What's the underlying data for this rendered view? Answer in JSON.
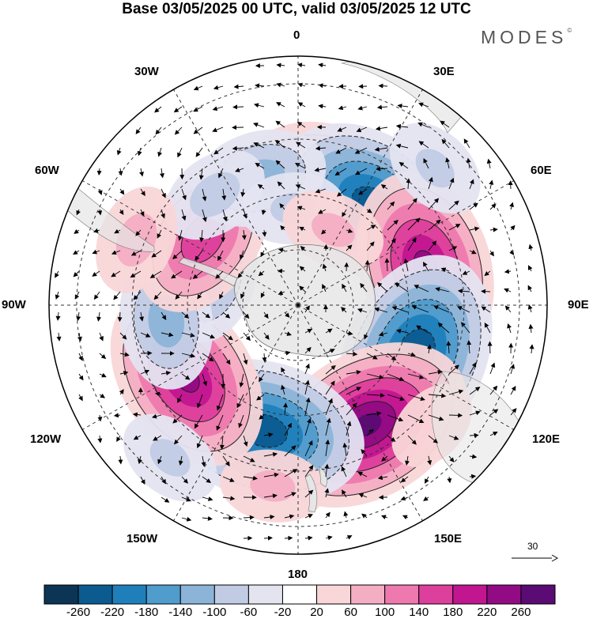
{
  "title": "Base 03/05/2025 00 UTC, valid 03/05/2025 12 UTC",
  "brand": "MODES",
  "brand_mark": "©",
  "longitude_labels": [
    {
      "id": "lon-0",
      "text": "0"
    },
    {
      "id": "lon-30e",
      "text": "30E"
    },
    {
      "id": "lon-60e",
      "text": "60E"
    },
    {
      "id": "lon-90e",
      "text": "90E"
    },
    {
      "id": "lon-120e",
      "text": "120E"
    },
    {
      "id": "lon-150e",
      "text": "150E"
    },
    {
      "id": "lon-180",
      "text": "180"
    },
    {
      "id": "lon-150w",
      "text": "150W"
    },
    {
      "id": "lon-120w",
      "text": "120W"
    },
    {
      "id": "lon-90w",
      "text": "90W"
    },
    {
      "id": "lon-60w",
      "text": "60W"
    },
    {
      "id": "lon-30w",
      "text": "30W"
    }
  ],
  "reference_vector": {
    "value": "30"
  },
  "colorbar": {
    "colors": [
      "#0c3454",
      "#0b5b91",
      "#1f7fbb",
      "#4f9ccd",
      "#8cb4d8",
      "#c1cbe4",
      "#e4e4f1",
      "#ffffff",
      "#f9d6d8",
      "#f4aec4",
      "#ee79ae",
      "#dd3f9c",
      "#c11690",
      "#920b84",
      "#5a0b74"
    ],
    "ticks": [
      "-260",
      "-220",
      "-180",
      "-140",
      "-100",
      "-60",
      "-20",
      "20",
      "60",
      "100",
      "140",
      "180",
      "220",
      "260"
    ]
  },
  "anomaly_centers": [
    {
      "lon": 10,
      "lat": -42,
      "value": 150
    },
    {
      "lon": 37,
      "lat": -45,
      "value": -250
    },
    {
      "lon": 73,
      "lat": -42,
      "value": 230
    },
    {
      "lon": 113,
      "lat": -44,
      "value": -260
    },
    {
      "lon": 150,
      "lat": -40,
      "value": 270
    },
    {
      "lon": -165,
      "lat": -43,
      "value": -250
    },
    {
      "lon": -123,
      "lat": -42,
      "value": 230
    },
    {
      "lon": -73,
      "lat": -57,
      "value": -110
    },
    {
      "lon": -97,
      "lat": -42,
      "value": -120
    },
    {
      "lon": -55,
      "lat": -48,
      "value": 170
    },
    {
      "lon": -17,
      "lat": -42,
      "value": -120
    },
    {
      "lon": -37,
      "lat": -40,
      "value": -70
    },
    {
      "lon": -3,
      "lat": -55,
      "value": -60
    },
    {
      "lon": 25,
      "lat": -60,
      "value": 60
    },
    {
      "lon": -68,
      "lat": -27,
      "value": 70
    },
    {
      "lon": 45,
      "lat": -20,
      "value": -60
    },
    {
      "lon": -140,
      "lat": -18,
      "value": -60
    },
    {
      "lon": -172,
      "lat": -24,
      "value": 60
    },
    {
      "lon": 132,
      "lat": -25,
      "value": 40
    }
  ]
}
